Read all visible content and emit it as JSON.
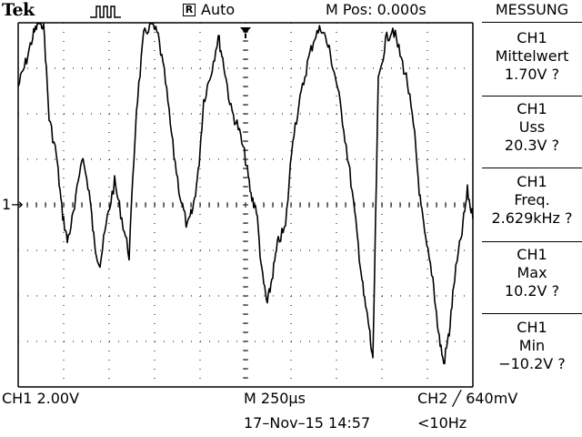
{
  "header": {
    "brand": "Tek",
    "run_mode": "Auto",
    "run_mode_icon": "R",
    "trigger_status_icon": "pulse-icon",
    "m_pos": "M Pos: 0.000s",
    "menu_title": "MESSUNG"
  },
  "measurements": [
    {
      "channel": "CH1",
      "label": "Mittelwert",
      "value": "1.70V ?"
    },
    {
      "channel": "CH1",
      "label": "Uss",
      "value": "20.3V ?"
    },
    {
      "channel": "CH1",
      "label": "Freq.",
      "value": "2.629kHz ?"
    },
    {
      "channel": "CH1",
      "label": "Max",
      "value": "10.2V ?"
    },
    {
      "channel": "CH1",
      "label": "Min",
      "value": "−10.2V ?"
    }
  ],
  "footer": {
    "ch1_scale": "CH1  2.00V",
    "timebase": "M 250µs",
    "trigger": "CH2 ╱ 640mV",
    "datetime": "17–Nov–15 14:57",
    "trigger_freq": "<10Hz"
  },
  "markers": {
    "ch1_ground": "1→",
    "trigger_position_icon": "trigger-position-arrow-icon"
  },
  "colors": {
    "background": "#ffffff",
    "foreground": "#000000"
  }
}
